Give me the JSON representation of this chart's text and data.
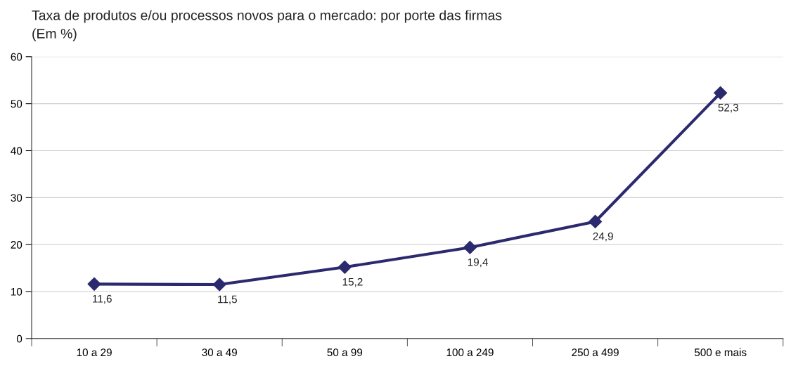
{
  "chart_data": {
    "type": "line",
    "title": "Taxa de produtos e/ou processos novos para o mercado: por porte das firmas",
    "subtitle": "(Em %)",
    "categories": [
      "10 a 29",
      "30 a 49",
      "50 a 99",
      "100 a 249",
      "250 a 499",
      "500 e mais"
    ],
    "series": [
      {
        "color": "#2b2a6e",
        "values": [
          11.6,
          11.5,
          15.2,
          19.4,
          24.9,
          52.3
        ],
        "value_labels": [
          "11,6",
          "11,5",
          "15,2",
          "19,4",
          "24,9",
          "52,3"
        ]
      }
    ],
    "ylim": [
      0,
      60
    ],
    "yticks": [
      0,
      10,
      20,
      30,
      40,
      50,
      60
    ],
    "grid": "y",
    "marker": "diamond",
    "line_style": "solid"
  }
}
